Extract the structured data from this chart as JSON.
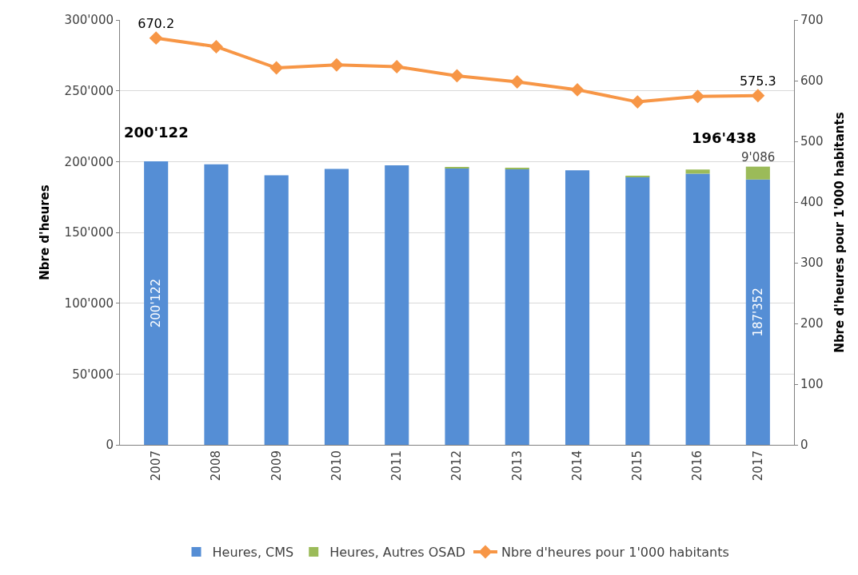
{
  "chart_data": {
    "type": "bar",
    "stacked": true,
    "categories": [
      "2007",
      "2008",
      "2009",
      "2010",
      "2011",
      "2012",
      "2013",
      "2014",
      "2015",
      "2016",
      "2017"
    ],
    "ylabel": "Nbre d'heures",
    "y2label": "Nbre d'heures pour 1'000 habitants",
    "series": [
      {
        "name": "Heures, CMS",
        "color": "#558ed5",
        "values": [
          200122,
          198100,
          190300,
          194900,
          197300,
          195500,
          194900,
          193800,
          189400,
          191500,
          187352
        ],
        "value_labels": [
          "200'122",
          null,
          null,
          null,
          null,
          null,
          null,
          null,
          null,
          null,
          "187'352"
        ]
      },
      {
        "name": "Heures, Autres OSAD",
        "color": "#9bbb59",
        "values": [
          0,
          0,
          0,
          0,
          0,
          600,
          600,
          0,
          600,
          2900,
          9086
        ],
        "value_labels": [
          null,
          null,
          null,
          null,
          null,
          null,
          null,
          null,
          null,
          null,
          "9'086"
        ]
      },
      {
        "name": "Nbre d'heures pour 1'000 habitants",
        "type": "line",
        "axis": "y2",
        "color": "#f79646",
        "marker": "diamond",
        "values": [
          670.2,
          656,
          621,
          626,
          623,
          608,
          598,
          585,
          565,
          574,
          575.3
        ],
        "value_labels": [
          "670.2",
          null,
          null,
          null,
          null,
          null,
          null,
          null,
          null,
          null,
          "575.3"
        ]
      }
    ],
    "totals": [
      "200'122",
      null,
      null,
      null,
      null,
      null,
      null,
      null,
      null,
      null,
      "196'438"
    ],
    "ylim": [
      0,
      300000
    ],
    "yticks": [
      {
        "value": 0,
        "label": "0"
      },
      {
        "value": 50000,
        "label": "50'000"
      },
      {
        "value": 100000,
        "label": "100'000"
      },
      {
        "value": 150000,
        "label": "150'000"
      },
      {
        "value": 200000,
        "label": "200'000"
      },
      {
        "value": 250000,
        "label": "250'000"
      },
      {
        "value": 300000,
        "label": "300'000"
      }
    ],
    "y2lim": [
      0,
      700
    ],
    "y2ticks": [
      0,
      100,
      200,
      300,
      400,
      500,
      600,
      700
    ],
    "grid": "y",
    "legend": "bottom"
  }
}
